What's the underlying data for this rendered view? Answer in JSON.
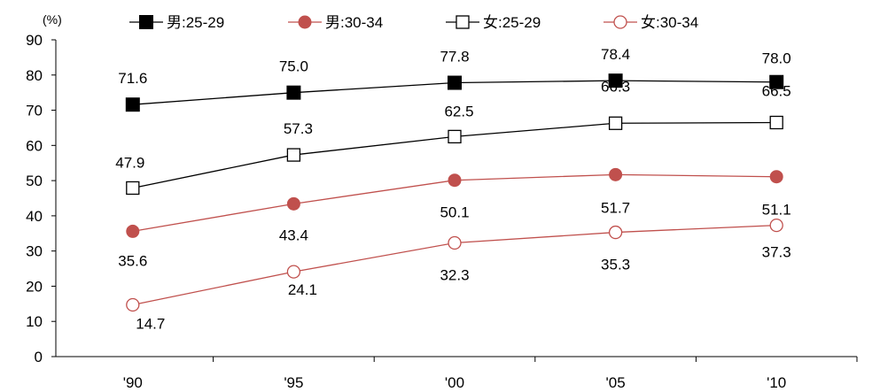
{
  "chart_data": {
    "type": "line",
    "title": "",
    "ylabel": "(%)",
    "xlabel": "",
    "ylim": [
      0,
      90
    ],
    "yticks": [
      0,
      10,
      20,
      30,
      40,
      50,
      60,
      70,
      80,
      90
    ],
    "categories": [
      "'90",
      "'95",
      "'00",
      "'05",
      "'10"
    ],
    "legend_position": "top",
    "grid": false,
    "series": [
      {
        "name": "男:25-29",
        "values": [
          71.6,
          75.0,
          77.8,
          78.4,
          78.0
        ],
        "labels": [
          "71.6",
          "75.0",
          "77.8",
          "78.4",
          "78.0"
        ],
        "color": "#000000",
        "marker": "square-filled"
      },
      {
        "name": "男:30-34",
        "values": [
          35.6,
          43.4,
          50.1,
          51.7,
          51.1
        ],
        "labels": [
          "35.6",
          "43.4",
          "50.1",
          "51.7",
          "51.1"
        ],
        "color": "#C0504D",
        "marker": "circle-filled"
      },
      {
        "name": "女:25-29",
        "values": [
          47.9,
          57.3,
          62.5,
          66.3,
          66.5
        ],
        "labels": [
          "47.9",
          "57.3",
          "62.5",
          "66.3",
          "66.5"
        ],
        "color": "#000000",
        "marker": "square-open"
      },
      {
        "name": "女:30-34",
        "values": [
          14.7,
          24.1,
          32.3,
          35.3,
          37.3
        ],
        "labels": [
          "14.7",
          "24.1",
          "32.3",
          "35.3",
          "37.3"
        ],
        "color": "#C0504D",
        "marker": "circle-open"
      }
    ]
  }
}
